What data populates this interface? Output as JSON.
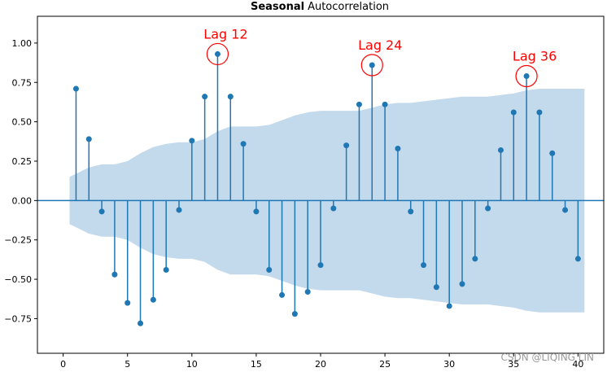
{
  "chart_data": {
    "type": "stem",
    "title_bold": "Seasonal",
    "title_rest": "Autocorrelation",
    "xlim": [
      -2,
      42
    ],
    "ylim": [
      -0.97,
      1.17
    ],
    "x_ticks": [
      0,
      5,
      10,
      15,
      20,
      25,
      30,
      35,
      40
    ],
    "y_ticks": [
      -0.75,
      -0.5,
      -0.25,
      0.0,
      0.25,
      0.5,
      0.75,
      1.0
    ],
    "y_tick_labels": [
      "−0.75",
      "−0.50",
      "−0.25",
      "0.00",
      "0.25",
      "0.50",
      "0.75",
      "1.00"
    ],
    "lags": [
      1,
      2,
      3,
      4,
      5,
      6,
      7,
      8,
      9,
      10,
      11,
      12,
      13,
      14,
      15,
      16,
      17,
      18,
      19,
      20,
      21,
      22,
      23,
      24,
      25,
      26,
      27,
      28,
      29,
      30,
      31,
      32,
      33,
      34,
      35,
      36,
      37,
      38,
      39,
      40
    ],
    "acf": [
      0.71,
      0.39,
      -0.07,
      -0.47,
      -0.65,
      -0.78,
      -0.63,
      -0.44,
      -0.06,
      0.38,
      0.66,
      0.93,
      0.66,
      0.36,
      -0.07,
      -0.44,
      -0.6,
      -0.72,
      -0.58,
      -0.41,
      -0.05,
      0.35,
      0.61,
      0.86,
      0.61,
      0.33,
      -0.07,
      -0.41,
      -0.55,
      -0.67,
      -0.53,
      -0.37,
      -0.05,
      0.32,
      0.56,
      0.79,
      0.56,
      0.3,
      -0.06,
      -0.37
    ],
    "confidence_band": {
      "lags": [
        0.5,
        1,
        2,
        3,
        4,
        5,
        6,
        7,
        8,
        9,
        10,
        11,
        12,
        13,
        14,
        15,
        16,
        17,
        18,
        19,
        20,
        21,
        22,
        23,
        24,
        25,
        26,
        27,
        28,
        29,
        30,
        31,
        32,
        33,
        34,
        35,
        36,
        37,
        38,
        39,
        40,
        40.5
      ],
      "upper": [
        0.15,
        0.17,
        0.21,
        0.23,
        0.23,
        0.25,
        0.3,
        0.34,
        0.36,
        0.37,
        0.37,
        0.39,
        0.44,
        0.47,
        0.47,
        0.47,
        0.48,
        0.51,
        0.54,
        0.56,
        0.57,
        0.57,
        0.57,
        0.57,
        0.59,
        0.61,
        0.62,
        0.62,
        0.63,
        0.64,
        0.65,
        0.66,
        0.66,
        0.66,
        0.67,
        0.68,
        0.7,
        0.71,
        0.71,
        0.71,
        0.71,
        0.71
      ]
    },
    "annotations": [
      {
        "lag": 12,
        "value": 0.93,
        "text": "Lag 12"
      },
      {
        "lag": 24,
        "value": 0.86,
        "text": "Lag 24"
      },
      {
        "lag": 36,
        "value": 0.79,
        "text": "Lag 36"
      }
    ],
    "colors": {
      "stem": "#1f77b4",
      "band": "#c3d9ec",
      "annotation": "#ff0000"
    }
  },
  "watermark": "CSDN @LIQING LIN"
}
